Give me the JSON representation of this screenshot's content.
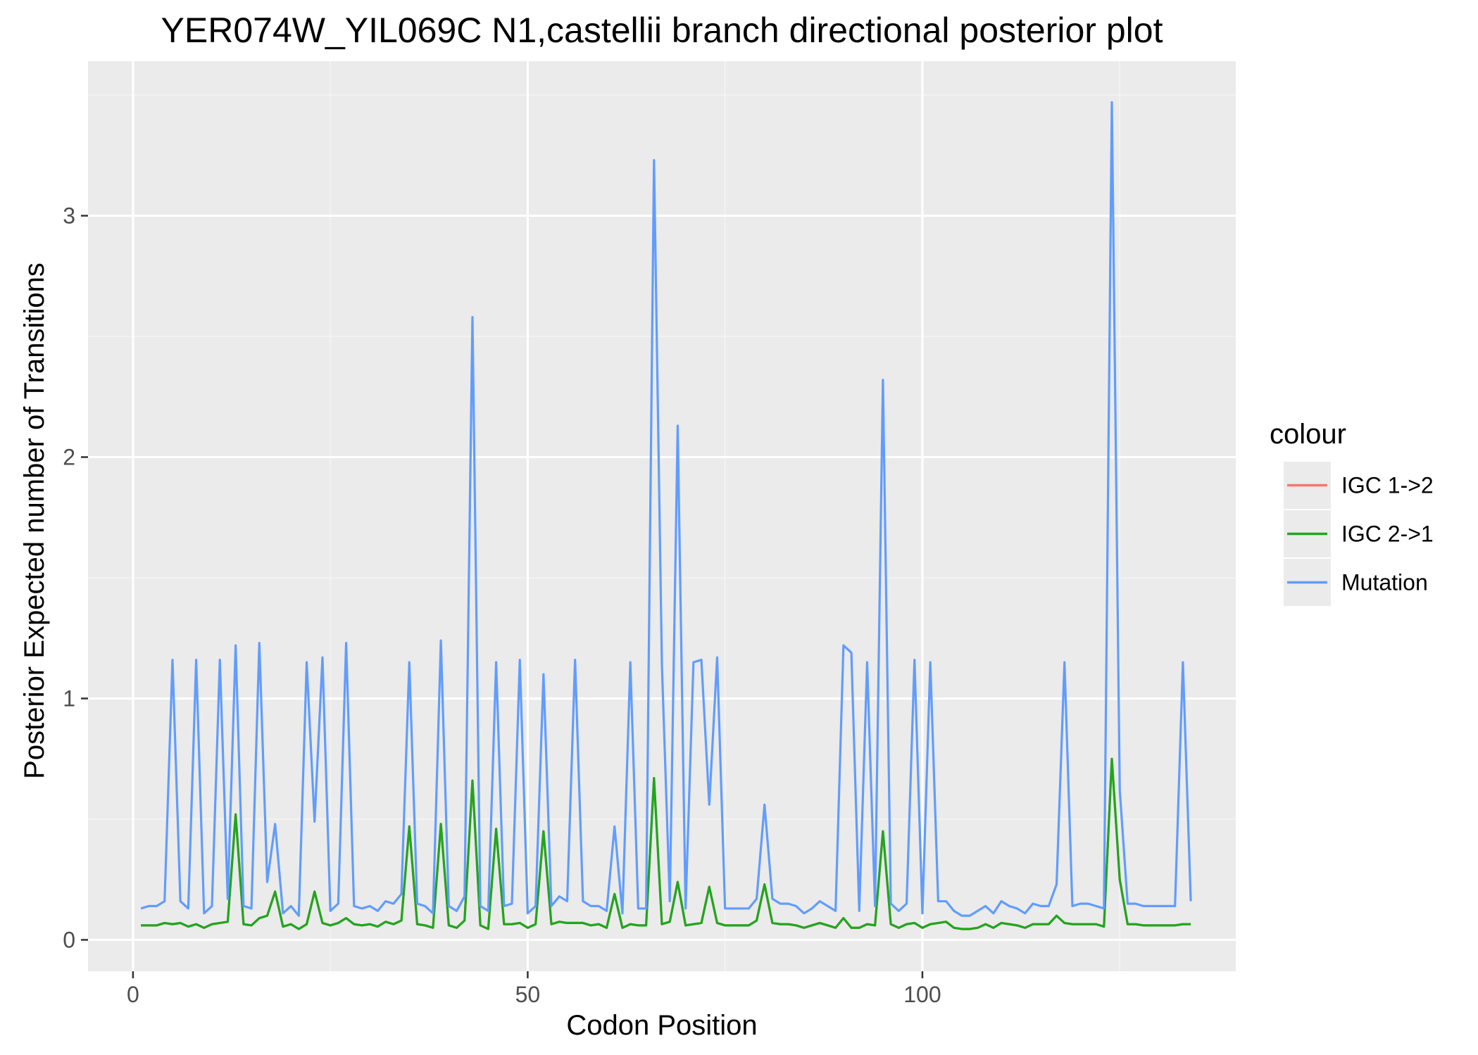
{
  "chart_data": {
    "type": "line",
    "title": "YER074W_YIL069C N1,castellii branch directional posterior plot",
    "xlabel": "Codon Position",
    "ylabel": "Posterior Expected number of Transitions",
    "xlim": [
      -5.7,
      139.7
    ],
    "ylim": [
      -0.13,
      3.64
    ],
    "x_ticks": [
      0,
      50,
      100
    ],
    "x_tick_labels": [
      "0",
      "50",
      "100"
    ],
    "y_ticks": [
      0,
      1,
      2,
      3
    ],
    "y_tick_labels": [
      "0",
      "1",
      "2",
      "3"
    ],
    "grid": true,
    "legend": {
      "title": "colour",
      "position": "right"
    },
    "x": [
      1,
      2,
      3,
      4,
      5,
      6,
      7,
      8,
      9,
      10,
      11,
      12,
      13,
      14,
      15,
      16,
      17,
      18,
      19,
      20,
      21,
      22,
      23,
      24,
      25,
      26,
      27,
      28,
      29,
      30,
      31,
      32,
      33,
      34,
      35,
      36,
      37,
      38,
      39,
      40,
      41,
      42,
      43,
      44,
      45,
      46,
      47,
      48,
      49,
      50,
      51,
      52,
      53,
      54,
      55,
      56,
      57,
      58,
      59,
      60,
      61,
      62,
      63,
      64,
      65,
      66,
      67,
      68,
      69,
      70,
      71,
      72,
      73,
      74,
      75,
      76,
      77,
      78,
      79,
      80,
      81,
      82,
      83,
      84,
      85,
      86,
      87,
      88,
      89,
      90,
      91,
      92,
      93,
      94,
      95,
      96,
      97,
      98,
      99,
      100,
      101,
      102,
      103,
      104,
      105,
      106,
      107,
      108,
      109,
      110,
      111,
      112,
      113,
      114,
      115,
      116,
      117,
      118,
      119,
      120,
      121,
      122,
      123,
      124,
      125,
      126,
      127,
      128,
      129,
      130,
      131,
      132,
      133,
      134
    ],
    "series": [
      {
        "name": "IGC 1->2",
        "color": "#f8766d",
        "values": [
          0.06,
          0.06,
          0.06,
          0.07,
          0.065,
          0.07,
          0.055,
          0.065,
          0.05,
          0.065,
          0.07,
          0.075,
          0.52,
          0.065,
          0.06,
          0.09,
          0.1,
          0.2,
          0.055,
          0.065,
          0.045,
          0.065,
          0.2,
          0.07,
          0.06,
          0.07,
          0.09,
          0.065,
          0.06,
          0.065,
          0.055,
          0.075,
          0.065,
          0.08,
          0.47,
          0.065,
          0.06,
          0.05,
          0.48,
          0.06,
          0.05,
          0.08,
          0.66,
          0.06,
          0.045,
          0.46,
          0.065,
          0.065,
          0.07,
          0.05,
          0.065,
          0.45,
          0.065,
          0.075,
          0.07,
          0.07,
          0.07,
          0.06,
          0.065,
          0.05,
          0.19,
          0.05,
          0.065,
          0.06,
          0.06,
          0.67,
          0.065,
          0.075,
          0.24,
          0.06,
          0.065,
          0.07,
          0.22,
          0.07,
          0.06,
          0.06,
          0.06,
          0.06,
          0.08,
          0.23,
          0.07,
          0.065,
          0.065,
          0.06,
          0.05,
          0.06,
          0.07,
          0.06,
          0.05,
          0.09,
          0.05,
          0.05,
          0.065,
          0.06,
          0.45,
          0.065,
          0.05,
          0.065,
          0.07,
          0.05,
          0.065,
          0.07,
          0.075,
          0.05,
          0.045,
          0.045,
          0.05,
          0.065,
          0.05,
          0.07,
          0.065,
          0.06,
          0.05,
          0.065,
          0.065,
          0.065,
          0.1,
          0.07,
          0.065,
          0.065,
          0.065,
          0.065,
          0.055,
          0.75,
          0.25,
          0.065,
          0.065,
          0.06,
          0.06,
          0.06,
          0.06,
          0.06,
          0.065,
          0.065
        ]
      },
      {
        "name": "IGC 2->1",
        "color": "#1ea71e",
        "values": [
          0.06,
          0.06,
          0.06,
          0.07,
          0.065,
          0.07,
          0.055,
          0.065,
          0.05,
          0.065,
          0.07,
          0.075,
          0.52,
          0.065,
          0.06,
          0.09,
          0.1,
          0.2,
          0.055,
          0.065,
          0.045,
          0.065,
          0.2,
          0.07,
          0.06,
          0.07,
          0.09,
          0.065,
          0.06,
          0.065,
          0.055,
          0.075,
          0.065,
          0.08,
          0.47,
          0.065,
          0.06,
          0.05,
          0.48,
          0.06,
          0.05,
          0.08,
          0.66,
          0.06,
          0.045,
          0.46,
          0.065,
          0.065,
          0.07,
          0.05,
          0.065,
          0.45,
          0.065,
          0.075,
          0.07,
          0.07,
          0.07,
          0.06,
          0.065,
          0.05,
          0.19,
          0.05,
          0.065,
          0.06,
          0.06,
          0.67,
          0.065,
          0.075,
          0.24,
          0.06,
          0.065,
          0.07,
          0.22,
          0.07,
          0.06,
          0.06,
          0.06,
          0.06,
          0.08,
          0.23,
          0.07,
          0.065,
          0.065,
          0.06,
          0.05,
          0.06,
          0.07,
          0.06,
          0.05,
          0.09,
          0.05,
          0.05,
          0.065,
          0.06,
          0.45,
          0.065,
          0.05,
          0.065,
          0.07,
          0.05,
          0.065,
          0.07,
          0.075,
          0.05,
          0.045,
          0.045,
          0.05,
          0.065,
          0.05,
          0.07,
          0.065,
          0.06,
          0.05,
          0.065,
          0.065,
          0.065,
          0.1,
          0.07,
          0.065,
          0.065,
          0.065,
          0.065,
          0.055,
          0.75,
          0.25,
          0.065,
          0.065,
          0.06,
          0.06,
          0.06,
          0.06,
          0.06,
          0.065,
          0.065
        ]
      },
      {
        "name": "Mutation",
        "color": "#619cff",
        "values": [
          0.13,
          0.14,
          0.14,
          0.16,
          1.16,
          0.16,
          0.13,
          1.16,
          0.11,
          0.14,
          1.16,
          0.17,
          1.22,
          0.14,
          0.13,
          1.23,
          0.24,
          0.48,
          0.11,
          0.14,
          0.1,
          1.15,
          0.49,
          1.17,
          0.12,
          0.15,
          1.23,
          0.14,
          0.13,
          0.14,
          0.12,
          0.16,
          0.15,
          0.19,
          1.15,
          0.15,
          0.14,
          0.11,
          1.24,
          0.14,
          0.12,
          0.18,
          2.58,
          0.14,
          0.12,
          1.15,
          0.14,
          0.15,
          1.16,
          0.11,
          0.14,
          1.1,
          0.14,
          0.18,
          0.16,
          1.16,
          0.16,
          0.14,
          0.14,
          0.12,
          0.47,
          0.11,
          1.15,
          0.13,
          0.13,
          3.23,
          1.14,
          0.16,
          2.13,
          0.13,
          1.15,
          1.16,
          0.56,
          1.17,
          0.13,
          0.13,
          0.13,
          0.13,
          0.17,
          0.56,
          0.17,
          0.15,
          0.15,
          0.14,
          0.11,
          0.13,
          0.16,
          0.14,
          0.12,
          1.22,
          1.19,
          0.12,
          1.15,
          0.14,
          2.32,
          0.15,
          0.12,
          0.15,
          1.16,
          0.11,
          1.15,
          0.16,
          0.16,
          0.12,
          0.1,
          0.1,
          0.12,
          0.14,
          0.11,
          0.16,
          0.14,
          0.13,
          0.11,
          0.15,
          0.14,
          0.14,
          0.23,
          1.15,
          0.14,
          0.15,
          0.15,
          0.14,
          0.13,
          3.47,
          0.62,
          0.15,
          0.15,
          0.14,
          0.14,
          0.14,
          0.14,
          0.14,
          1.15,
          0.16
        ]
      }
    ]
  }
}
